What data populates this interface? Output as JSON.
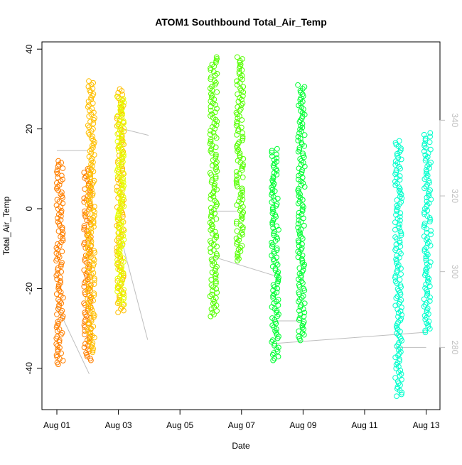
{
  "chart_data": {
    "type": "scatter",
    "title": "ATOM1 Southbound Total_Air_Temp",
    "xlabel": "Date",
    "ylabel": "Total_Air_Temp",
    "x_range_days": [
      0.0,
      12.5
    ],
    "x_ticks": [
      {
        "day": 0,
        "label": "Aug 01"
      },
      {
        "day": 2,
        "label": "Aug 03"
      },
      {
        "day": 4,
        "label": "Aug 05"
      },
      {
        "day": 6,
        "label": "Aug 07"
      },
      {
        "day": 8,
        "label": "Aug 09"
      },
      {
        "day": 10,
        "label": "Aug 11"
      },
      {
        "day": 12,
        "label": "Aug 13"
      }
    ],
    "ylim": [
      -50,
      42
    ],
    "y_ticks": [
      -40,
      -20,
      0,
      20,
      40
    ],
    "right_axis": {
      "ticks": [
        280,
        300,
        320,
        340
      ],
      "ylim": [
        260,
        350
      ],
      "color": "#bebebe"
    },
    "series": [
      {
        "color": "#ff7f00",
        "segments": [
          {
            "day": 0.0,
            "min": -39,
            "max": 12
          },
          {
            "day": 0.9,
            "min": -38,
            "max": 10
          }
        ]
      },
      {
        "color": "#ffbf00",
        "segments": [
          {
            "day": 1.02,
            "min": -36,
            "max": 32
          },
          {
            "day": 1.97,
            "min": -26,
            "max": 30
          }
        ]
      },
      {
        "color": "#e5ff00",
        "segments": [
          {
            "day": 1.98,
            "min": -24,
            "max": 28
          }
        ]
      },
      {
        "color": "#55ff00",
        "segments": [
          {
            "day": 5.0,
            "min": -27,
            "max": 38
          },
          {
            "day": 5.85,
            "min": -13,
            "max": 38
          }
        ]
      },
      {
        "color": "#00ff33",
        "segments": [
          {
            "day": 7.0,
            "min": -38,
            "max": 15
          },
          {
            "day": 7.85,
            "min": -33,
            "max": 31
          }
        ]
      },
      {
        "color": "#00ffcc",
        "segments": [
          {
            "day": 11.0,
            "min": -47,
            "max": 17
          },
          {
            "day": 11.95,
            "min": -31,
            "max": 19
          }
        ]
      }
    ],
    "right_axis_line_points": [
      {
        "day": 0.0,
        "value": 332
      },
      {
        "day": 0.98,
        "value": 332
      },
      {
        "day": 0.0,
        "value": 291
      },
      {
        "day": 1.05,
        "value": 273
      },
      {
        "day": 2.0,
        "value": 338
      },
      {
        "day": 2.98,
        "value": 336
      },
      {
        "day": 2.05,
        "value": 310
      },
      {
        "day": 2.95,
        "value": 282
      },
      {
        "day": 5.0,
        "value": 316
      },
      {
        "day": 5.85,
        "value": 316
      },
      {
        "day": 5.05,
        "value": 304
      },
      {
        "day": 7.05,
        "value": 299
      },
      {
        "day": 7.0,
        "value": 287
      },
      {
        "day": 7.88,
        "value": 287
      },
      {
        "day": 7.02,
        "value": 281
      },
      {
        "day": 12.0,
        "value": 284
      },
      {
        "day": 11.0,
        "value": 280
      },
      {
        "day": 12.0,
        "value": 280
      }
    ]
  }
}
